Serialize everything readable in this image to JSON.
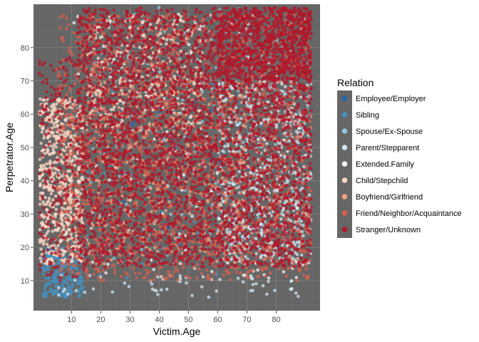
{
  "chart_data": {
    "type": "scatter",
    "title": "",
    "xlabel": "Victim.Age",
    "ylabel": "Perpetrator.Age",
    "xlim": [
      -3,
      95
    ],
    "ylim": [
      1,
      93
    ],
    "x_ticks": [
      10,
      20,
      30,
      40,
      50,
      60,
      70,
      80
    ],
    "y_ticks": [
      10,
      20,
      30,
      40,
      50,
      60,
      70,
      80
    ],
    "grid": true,
    "background": "#666666",
    "legend": {
      "title": "Relation",
      "placement": "right",
      "background": "#666666"
    },
    "series": [
      {
        "name": "Employee/Employer",
        "color": "#2166ac",
        "clusters": [
          {
            "x": [
              25,
              75
            ],
            "y": [
              18,
              75
            ],
            "n": 60
          }
        ]
      },
      {
        "name": "Sibling",
        "color": "#4393c3",
        "clusters": [
          {
            "x": [
              0,
              14
            ],
            "y": [
              5,
              20
            ],
            "n": 220
          },
          {
            "x": [
              15,
              80
            ],
            "y": [
              10,
              70
            ],
            "n": 60
          }
        ]
      },
      {
        "name": "Spouse/Ex-Spouse",
        "color": "#92c5de",
        "clusters": [
          {
            "x": [
              15,
              92
            ],
            "y": [
              15,
              92
            ],
            "n": 250
          }
        ]
      },
      {
        "name": "Parent/Stepparent",
        "color": "#d1e5f0",
        "clusters": [
          {
            "x": [
              60,
              92
            ],
            "y": [
              15,
              70
            ],
            "n": 650
          },
          {
            "x": [
              5,
              90
            ],
            "y": [
              5,
              12
            ],
            "n": 60
          }
        ]
      },
      {
        "name": "Extended.Family",
        "color": "#f7f7f7",
        "clusters": [
          {
            "x": [
              10,
              92
            ],
            "y": [
              10,
              90
            ],
            "n": 250
          }
        ]
      },
      {
        "name": "Child/Stepchild",
        "color": "#fddbc7",
        "clusters": [
          {
            "x": [
              -1,
              14
            ],
            "y": [
              15,
              65
            ],
            "n": 650
          },
          {
            "x": [
              15,
              55
            ],
            "y": [
              55,
              90
            ],
            "n": 350
          }
        ]
      },
      {
        "name": "Boyfriend/Girlfriend",
        "color": "#f4a582",
        "clusters": [
          {
            "x": [
              15,
              70
            ],
            "y": [
              15,
              70
            ],
            "n": 450
          }
        ]
      },
      {
        "name": "Friend/Neighbor/Acquaintance",
        "color": "#d6604d",
        "clusters": [
          {
            "x": [
              5,
              92
            ],
            "y": [
              10,
              90
            ],
            "n": 2000
          }
        ]
      },
      {
        "name": "Stranger/Unknown",
        "color": "#b2182b",
        "clusters": [
          {
            "x": [
              12,
              92
            ],
            "y": [
              14,
              92
            ],
            "n": 3800
          },
          {
            "x": [
              60,
              92
            ],
            "y": [
              70,
              92
            ],
            "n": 700
          },
          {
            "x": [
              -1,
              15
            ],
            "y": [
              10,
              77
            ],
            "n": 250
          }
        ]
      }
    ]
  }
}
